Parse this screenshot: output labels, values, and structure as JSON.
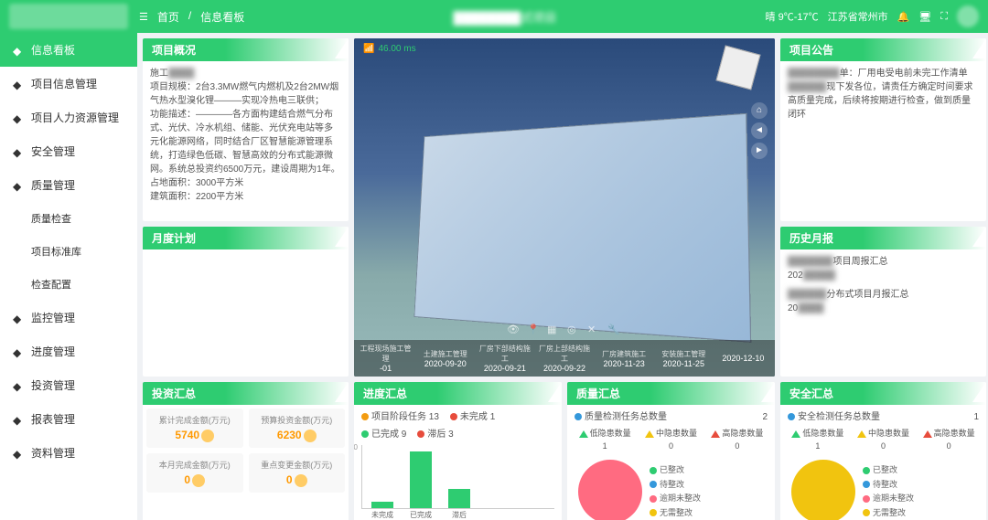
{
  "header": {
    "home": "首页",
    "breadcrumb": "信息看板",
    "project_suffix": "式项目",
    "weather": "晴 9℃-17℃",
    "location": "江苏省常州市"
  },
  "sidebar": {
    "items": [
      {
        "label": "信息看板",
        "active": true
      },
      {
        "label": "项目信息管理"
      },
      {
        "label": "项目人力资源管理"
      },
      {
        "label": "安全管理"
      },
      {
        "label": "质量管理"
      },
      {
        "label": "质量检查",
        "sub": true
      },
      {
        "label": "项目标准库",
        "sub": true
      },
      {
        "label": "检查配置",
        "sub": true
      },
      {
        "label": "监控管理"
      },
      {
        "label": "进度管理"
      },
      {
        "label": "投资管理"
      },
      {
        "label": "报表管理"
      },
      {
        "label": "资料管理"
      }
    ]
  },
  "overview": {
    "title": "项目概况",
    "line1": "施工",
    "body": "项目规模：2台3.3MW燃气内燃机及2台2MW烟气热水型溴化锂———实现冷热电三联供；\n功能描述：————各方面构建结合燃气分布式、光伏、冷水机组、储能、光伏充电站等多元化能源网络，同时结合厂区智慧能源管理系统，打造绿色低碳、智慧高效的分布式能源微网。系统总投资约6500万元，建设周期为1年。",
    "area1_label": "占地面积：",
    "area1_val": "3000平方米",
    "area2_label": "建筑面积：",
    "area2_val": "2200平方米"
  },
  "monthly": {
    "title": "月度计划"
  },
  "viewer": {
    "ping": "46.00 ms",
    "timeline": [
      "-01",
      "2020-09-20",
      "2020-09-21",
      "2020-09-22",
      "2020-11-23",
      "2020-11-25",
      "2020-12-10"
    ],
    "labels": [
      "工程现场施工管理",
      "土建施工管理",
      "厂房下部结构施工",
      "厂房上部结构施工",
      "厂房建筑施工",
      "安装施工管理"
    ]
  },
  "announce": {
    "title": "项目公告",
    "l1": "单：厂用电受电前未完工作清单",
    "l2": "现下发各位，请责任方确定时间要求高质量完成，后续将按期进行检查，做到质量闭环"
  },
  "history": {
    "title": "历史月报",
    "r1": "项目周报汇总",
    "r1_date": "202",
    "r2": "分布式项目月报汇总",
    "r2_date": "20"
  },
  "invest": {
    "title": "投资汇总",
    "s1_label": "累计完成金额(万元)",
    "s1_val": "5740",
    "s2_label": "预算投资金额(万元)",
    "s2_val": "6230",
    "s3_label": "本月完成金额(万元)",
    "s3_val": "0",
    "s4_label": "重点变更金额(万元)",
    "s4_val": "0"
  },
  "progress": {
    "title": "进度汇总",
    "task_label": "项目阶段任务",
    "task_n": "13",
    "undone_label": "未完成",
    "undone_n": "1",
    "done_label": "已完成",
    "done_n": "9",
    "delay_label": "滞后",
    "delay_n": "3",
    "chart": {
      "y_ticks": [
        "0",
        "2",
        "4",
        "6",
        "8",
        "10"
      ],
      "bars": [
        {
          "label": "未完成",
          "value": 1,
          "color": "#2ecc71"
        },
        {
          "label": "已完成",
          "value": 9,
          "color": "#2ecc71"
        },
        {
          "label": "滞后",
          "value": 3,
          "color": "#2ecc71"
        }
      ],
      "ymax": 10
    }
  },
  "quality": {
    "title": "质量汇总",
    "total_label": "质量检测任务总数量",
    "total_n": "2",
    "low": "低隐患数量",
    "low_n": "1",
    "low_color": "#2ecc71",
    "mid": "中隐患数量",
    "mid_n": "0",
    "mid_color": "#f1c40f",
    "high": "高隐患数量",
    "high_n": "0",
    "high_color": "#e74c3c",
    "pie_color": "#ff6b81",
    "legend": [
      "已整改",
      "待整改",
      "逾期未整改",
      "无需整改"
    ],
    "legend_colors": [
      "#2ecc71",
      "#3498db",
      "#ff6b81",
      "#f1c40f"
    ]
  },
  "safety": {
    "title": "安全汇总",
    "total_label": "安全检测任务总数量",
    "total_n": "1",
    "low": "低隐患数量",
    "low_n": "1",
    "low_color": "#2ecc71",
    "mid": "中隐患数量",
    "mid_n": "0",
    "mid_color": "#f1c40f",
    "high": "高隐患数量",
    "high_n": "0",
    "high_color": "#e74c3c",
    "pie_color": "#f1c40f",
    "legend": [
      "已整改",
      "待整改",
      "逾期未整改",
      "无需整改"
    ],
    "legend_colors": [
      "#2ecc71",
      "#3498db",
      "#ff6b81",
      "#f1c40f"
    ]
  }
}
